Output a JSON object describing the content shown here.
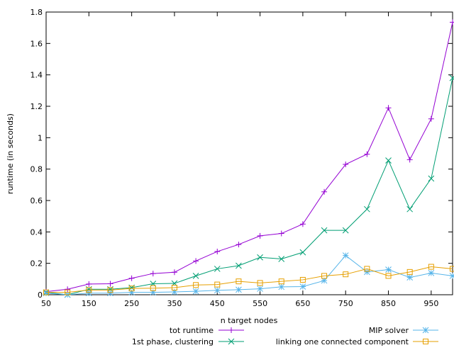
{
  "chart_data": {
    "type": "line",
    "xlabel": "n target nodes",
    "ylabel": "runtime (in seconds)",
    "xlim": [
      50,
      1000
    ],
    "ylim": [
      0,
      1.8
    ],
    "xticks": [
      "50",
      "150",
      "250",
      "350",
      "450",
      "550",
      "650",
      "750",
      "850",
      "950"
    ],
    "xtick_values": [
      50,
      150,
      250,
      350,
      450,
      550,
      650,
      750,
      850,
      950
    ],
    "yticks": [
      "0",
      "0.2",
      "0.4",
      "0.6",
      "0.8",
      "1",
      "1.2",
      "1.4",
      "1.6",
      "1.8"
    ],
    "ytick_values": [
      0,
      0.2,
      0.4,
      0.6,
      0.8,
      1.0,
      1.2,
      1.4,
      1.6,
      1.8
    ],
    "grid": false,
    "legend_position": "bottom",
    "x": [
      50,
      100,
      150,
      200,
      250,
      300,
      350,
      400,
      450,
      500,
      550,
      600,
      650,
      700,
      750,
      800,
      850,
      900,
      950,
      1000
    ],
    "series": [
      {
        "name": "tot runtime",
        "color": "#9400d3",
        "marker": "plus",
        "values": [
          0.02,
          0.035,
          0.068,
          0.07,
          0.105,
          0.135,
          0.143,
          0.215,
          0.275,
          0.32,
          0.375,
          0.39,
          0.45,
          0.655,
          0.83,
          0.895,
          1.19,
          0.86,
          1.12,
          1.735
        ]
      },
      {
        "name": "1st phase, clustering",
        "color": "#009e73",
        "marker": "cross",
        "values": [
          0.015,
          0.0,
          0.035,
          0.035,
          0.045,
          0.07,
          0.072,
          0.12,
          0.165,
          0.185,
          0.238,
          0.228,
          0.27,
          0.41,
          0.41,
          0.545,
          0.855,
          0.545,
          0.74,
          1.38
        ]
      },
      {
        "name": "MIP solver",
        "color": "#56b4e9",
        "marker": "star",
        "values": [
          0.01,
          0.0,
          0.01,
          0.01,
          0.015,
          0.015,
          0.018,
          0.022,
          0.028,
          0.032,
          0.038,
          0.05,
          0.052,
          0.09,
          0.25,
          0.145,
          0.16,
          0.11,
          0.138,
          0.12
        ]
      },
      {
        "name": "linking one connected component",
        "color": "#e69f00",
        "marker": "square",
        "values": [
          0.015,
          0.015,
          0.03,
          0.03,
          0.04,
          0.042,
          0.045,
          0.062,
          0.065,
          0.085,
          0.075,
          0.085,
          0.095,
          0.12,
          0.13,
          0.165,
          0.12,
          0.145,
          0.178,
          0.165
        ]
      }
    ]
  }
}
